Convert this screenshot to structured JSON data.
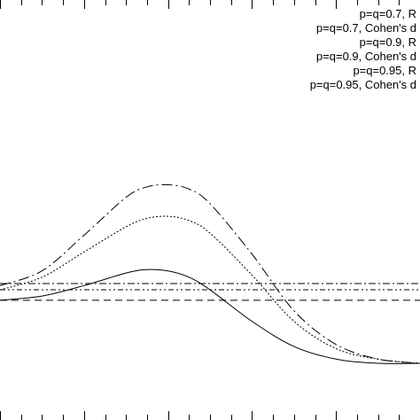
{
  "chart_data": {
    "type": "line",
    "title": "",
    "xlabel": "",
    "ylabel": "",
    "legend_position": "top-right",
    "grid": false,
    "xlim": [
      0,
      10
    ],
    "ylim": [
      0,
      10
    ],
    "series": [
      {
        "name": "p=q=0.7, R",
        "style": "solid",
        "x": [
          0,
          1,
          2,
          3,
          3.5,
          4,
          4.5,
          5,
          6,
          7,
          8,
          9,
          10
        ],
        "y": [
          2.85,
          2.95,
          3.2,
          3.5,
          3.58,
          3.55,
          3.4,
          3.1,
          2.35,
          1.75,
          1.45,
          1.35,
          1.35
        ]
      },
      {
        "name": "p=q=0.7, Cohen's d",
        "style": "dash",
        "x": [
          0,
          10
        ],
        "y": [
          2.85,
          2.85
        ]
      },
      {
        "name": "p=q=0.9, R",
        "style": "dot",
        "x": [
          0,
          1,
          2,
          3,
          3.5,
          4,
          4.5,
          5,
          6,
          7,
          8,
          9,
          10
        ],
        "y": [
          3.1,
          3.4,
          4.0,
          4.6,
          4.8,
          4.85,
          4.75,
          4.45,
          3.45,
          2.35,
          1.7,
          1.45,
          1.35
        ]
      },
      {
        "name": "p=q=0.9, Cohen's d",
        "style": "dash-dot",
        "x": [
          0,
          10
        ],
        "y": [
          3.25,
          3.25
        ]
      },
      {
        "name": "p=q=0.95, R",
        "style": "long-dash-dot",
        "x": [
          0,
          1,
          2,
          3,
          3.5,
          4,
          4.5,
          5,
          6,
          7,
          8,
          9,
          10
        ],
        "y": [
          3.2,
          3.55,
          4.4,
          5.3,
          5.55,
          5.6,
          5.5,
          5.15,
          3.95,
          2.6,
          1.8,
          1.45,
          1.35
        ]
      },
      {
        "name": "p=q=0.95, Cohen's d",
        "style": "dash-dot-dot",
        "x": [
          0,
          10
        ],
        "y": [
          3.1,
          3.1
        ]
      }
    ],
    "legend_visible_text": [
      "p=q=0.7, R",
      "p=q=0.7, Cohen's d",
      "p=q=0.9, R",
      "p=q=0.9, Cohen's d",
      "p=q=0.95, R",
      "p=q=0.95, Cohen's d"
    ]
  }
}
